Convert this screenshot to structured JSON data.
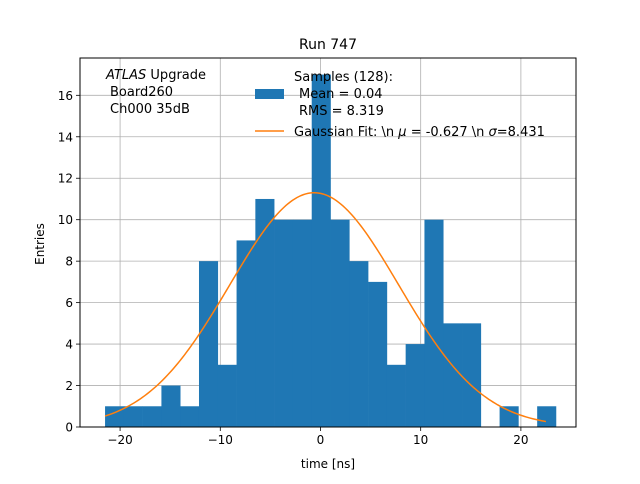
{
  "chart_data": {
    "type": "bar",
    "title": "Run 747",
    "xlabel": "time [ns]",
    "ylabel": "Entries",
    "xlim": [
      -24,
      25.5
    ],
    "ylim": [
      0,
      17.8
    ],
    "grid": true,
    "xticks": [
      -20,
      -10,
      0,
      10,
      20
    ],
    "yticks": [
      0,
      2,
      4,
      6,
      8,
      10,
      12,
      14,
      16
    ],
    "bin_edges": [
      -21.5,
      -19.625,
      -17.75,
      -15.875,
      -14.0,
      -12.125,
      -10.25,
      -8.375,
      -6.5,
      -4.625,
      -2.75,
      -0.875,
      1.0,
      2.875,
      4.75,
      6.625,
      8.5,
      10.375,
      12.25,
      14.125,
      16.0,
      17.875,
      19.75,
      21.625,
      23.5
    ],
    "counts": [
      1,
      1,
      1,
      2,
      1,
      8,
      3,
      9,
      11,
      10,
      10,
      17,
      10,
      8,
      7,
      3,
      4,
      10,
      5,
      5,
      0,
      1,
      0,
      1
    ],
    "fit": {
      "type": "gaussian",
      "mu": -0.627,
      "sigma": 8.431,
      "amplitude": 11.3,
      "x_range": [
        -21.5,
        22.5
      ]
    },
    "colors": {
      "bars": "#1f77b4",
      "fit": "#ff7f0e",
      "grid": "#b0b0b0"
    },
    "annotation": {
      "atlas_word": "ATLAS",
      "upgrade_word": "Upgrade",
      "line2": "Board260",
      "line3": "Ch000 35dB"
    },
    "legend": {
      "placement": "top-right",
      "entries": [
        {
          "kind": "bar",
          "line1": "Samples (128):",
          "line2": "Mean = 0.04",
          "line3": "RMS = 8.319"
        },
        {
          "kind": "line",
          "prefix": "Gaussian Fit: \\n ",
          "mu_symbol": "μ",
          "mu_text": " = -0.627 \\n ",
          "sigma_symbol": "σ",
          "sigma_text": "=8.431"
        }
      ]
    }
  }
}
